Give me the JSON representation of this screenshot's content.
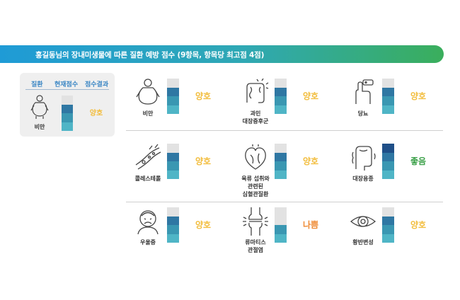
{
  "banner": {
    "title": "홍길동님의 장내미생물에 따른 질환 예방 점수 (9항목, 항목당 최고점 4점)"
  },
  "legend": {
    "headers": {
      "disease": "질환",
      "score": "현재점수",
      "result": "점수결과"
    },
    "sample": {
      "name": "비만",
      "icon": "obesity-icon",
      "score": 3,
      "max": 4,
      "result": "양호"
    }
  },
  "colors": {
    "empty": "#e2e2e2",
    "levels": [
      "#4fb5c6",
      "#3a97b2",
      "#2f77a3",
      "#1f4f88"
    ],
    "good": "#f2bd3d",
    "very_good": "#3aa048",
    "bad": "#ef8b35"
  },
  "items": [
    {
      "name": "비만",
      "icon": "obesity-icon",
      "score": 3,
      "max": 4,
      "result": "양호",
      "status": "good"
    },
    {
      "name": "과민\n대장증후군",
      "icon": "intestine-pain-icon",
      "score": 3,
      "max": 4,
      "result": "양호",
      "status": "good"
    },
    {
      "name": "당뇨",
      "icon": "glucose-test-icon",
      "score": 3,
      "max": 4,
      "result": "양호",
      "status": "good"
    },
    {
      "name": "콜레스테롤",
      "icon": "blood-vessel-icon",
      "score": 3,
      "max": 4,
      "result": "양호",
      "status": "good"
    },
    {
      "name": "육류 섭취와\n관련된\n심혈관질환",
      "icon": "heart-icon",
      "score": 3,
      "max": 4,
      "result": "양호",
      "status": "good"
    },
    {
      "name": "대장용종",
      "icon": "colon-icon",
      "score": 4,
      "max": 4,
      "result": "좋음",
      "status": "very_good"
    },
    {
      "name": "우울증",
      "icon": "depressed-face-icon",
      "score": 3,
      "max": 4,
      "result": "양호",
      "status": "good"
    },
    {
      "name": "류마티스\n관절염",
      "icon": "joint-icon",
      "score": 2,
      "max": 4,
      "result": "나쁨",
      "status": "bad"
    },
    {
      "name": "황반변성",
      "icon": "eye-icon",
      "score": 3,
      "max": 4,
      "result": "양호",
      "status": "good"
    }
  ]
}
